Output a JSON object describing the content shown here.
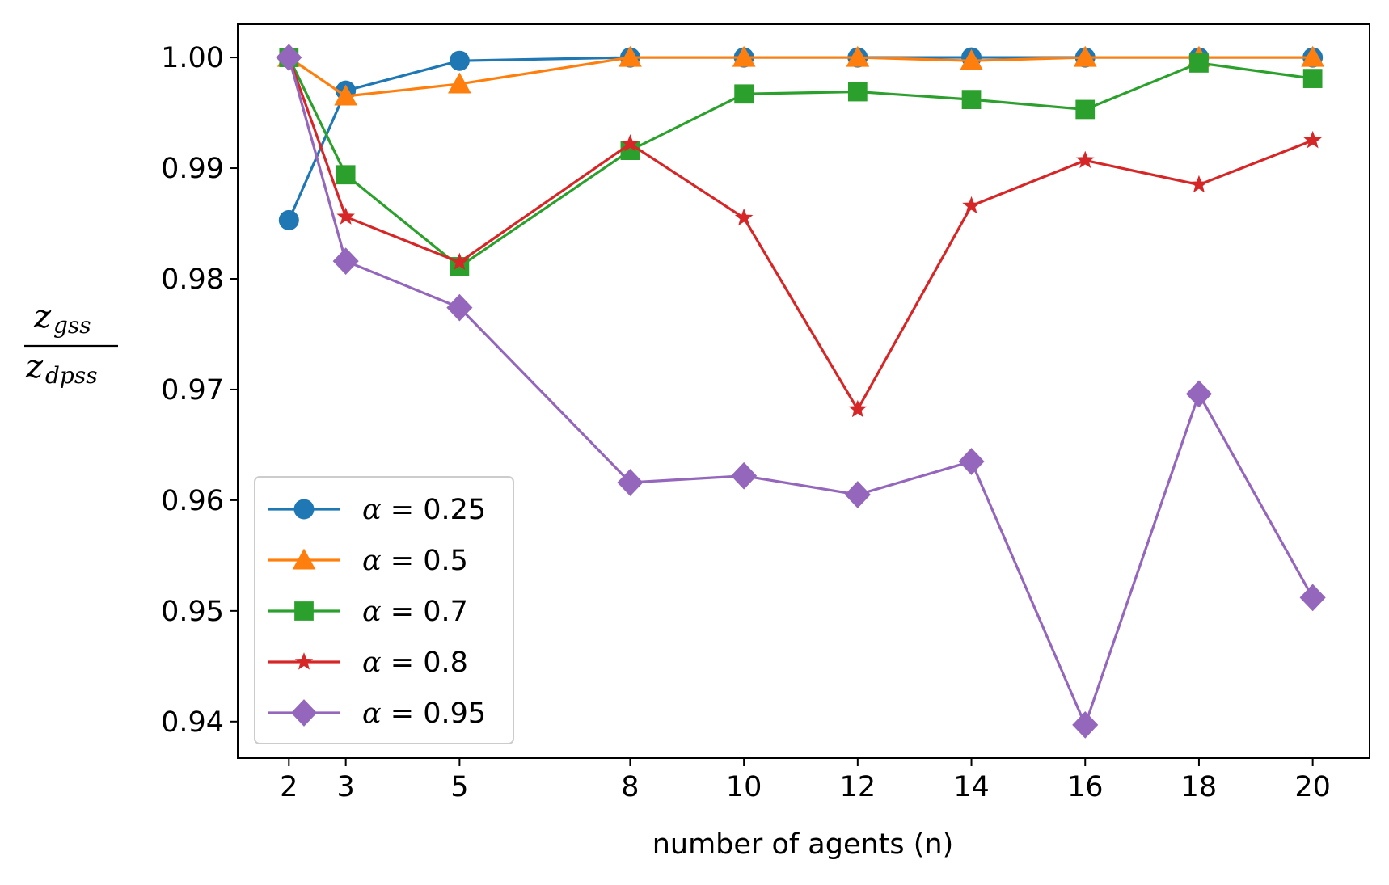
{
  "chart_data": {
    "type": "line",
    "x": [
      2,
      3,
      5,
      8,
      10,
      12,
      14,
      16,
      18,
      20
    ],
    "xticks": [
      "2",
      "3",
      "5",
      "8",
      "10",
      "12",
      "14",
      "16",
      "18",
      "20"
    ],
    "yticks": [
      "0.94",
      "0.95",
      "0.96",
      "0.97",
      "0.98",
      "0.99",
      "1.00"
    ],
    "ytick_values": [
      0.94,
      0.95,
      0.96,
      0.97,
      0.98,
      0.99,
      1.0
    ],
    "xlim": [
      1.1,
      21.0
    ],
    "ylim": [
      0.9367,
      1.003
    ],
    "xlabel": "number of agents (n)",
    "ylabel": {
      "numerator": "z",
      "numerator_sub": "gss",
      "denominator": "z",
      "denominator_sub": "dpss"
    },
    "grid": false,
    "legend_position": "lower-left",
    "series": [
      {
        "name": "α = 0.25",
        "greek": "α",
        "value": "0.25",
        "color": "#1f77b4",
        "marker": "circle",
        "values": [
          0.9853,
          0.997,
          0.9997,
          1.0,
          1.0,
          1.0,
          1.0,
          1.0,
          1.0,
          1.0
        ]
      },
      {
        "name": "α = 0.5",
        "greek": "α",
        "value": "0.5",
        "color": "#ff7f0e",
        "marker": "triangle",
        "values": [
          1.0,
          0.9965,
          0.9976,
          1.0,
          1.0,
          1.0,
          0.9997,
          1.0,
          1.0,
          1.0
        ]
      },
      {
        "name": "α = 0.7",
        "greek": "α",
        "value": "0.7",
        "color": "#2ca02c",
        "marker": "square",
        "values": [
          1.0,
          0.9894,
          0.9811,
          0.9916,
          0.9967,
          0.9969,
          0.9962,
          0.9953,
          0.9995,
          0.9981
        ]
      },
      {
        "name": "α = 0.8",
        "greek": "α",
        "value": "0.8",
        "color": "#d62728",
        "marker": "star",
        "values": [
          1.0,
          0.9856,
          0.9815,
          0.9922,
          0.9855,
          0.9682,
          0.9866,
          0.9907,
          0.9885,
          0.9925
        ]
      },
      {
        "name": "α = 0.95",
        "greek": "α",
        "value": "0.95",
        "color": "#9467bd",
        "marker": "diamond",
        "values": [
          1.0,
          0.9816,
          0.9774,
          0.9616,
          0.9622,
          0.9605,
          0.9635,
          0.9397,
          0.9696,
          0.9512
        ]
      }
    ]
  }
}
